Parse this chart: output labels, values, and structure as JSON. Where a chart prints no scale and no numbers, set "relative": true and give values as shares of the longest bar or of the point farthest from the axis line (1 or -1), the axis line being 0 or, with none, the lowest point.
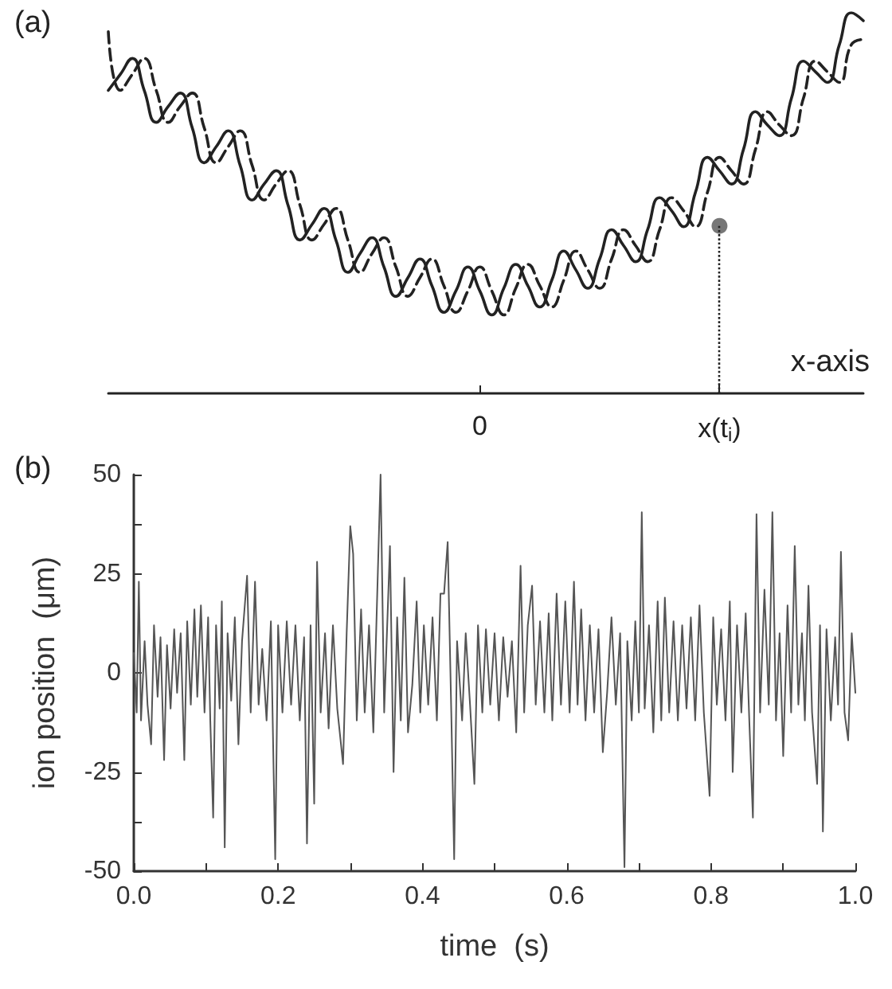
{
  "chart_data": [
    {
      "type": "line",
      "title": "(a)",
      "xlabel": "x-axis",
      "relative": true,
      "grid": false,
      "marker": "none",
      "categories": [
        null,
        null,
        null,
        null,
        null,
        null,
        null,
        null,
        null,
        null,
        null,
        null,
        null,
        null,
        null,
        null,
        null,
        null,
        null,
        null,
        null,
        null,
        null,
        null,
        null,
        null,
        null,
        null,
        null,
        null,
        null,
        "0",
        null,
        null,
        null,
        null,
        null,
        null,
        null,
        null,
        null,
        null,
        null,
        null,
        null,
        null,
        null,
        null,
        null,
        null,
        null,
        "x(t$_{i}$)",
        null,
        null,
        null,
        null,
        null,
        null,
        null,
        null,
        null,
        null,
        null,
        null
      ],
      "series": [
        {
          "color": "#222222",
          "line_style": "solid",
          "values": [
            0.796,
            0.838,
            0.88,
            0.796,
            0.712,
            0.754,
            0.789,
            0.698,
            0.606,
            0.648,
            0.69,
            0.599,
            0.508,
            0.55,
            0.585,
            0.494,
            0.403,
            0.444,
            0.486,
            0.402,
            0.318,
            0.367,
            0.409,
            0.332,
            0.255,
            0.304,
            0.353,
            0.283,
            0.213,
            0.269,
            0.332,
            0.269,
            0.206,
            0.276,
            0.339,
            0.283,
            0.227,
            0.297,
            0.374,
            0.325,
            0.276,
            0.353,
            0.43,
            0.388,
            0.346,
            0.43,
            0.514,
            0.48,
            0.438,
            0.529,
            0.62,
            0.585,
            0.55,
            0.641,
            0.74,
            0.705,
            0.677,
            0.775,
            0.873,
            0.845,
            0.817,
            0.916,
            1.0,
            0.979
          ]
        },
        {
          "color": "#222222",
          "line_style": "dashed",
          "values": [
            0.95,
            0.796,
            0.838,
            0.88,
            0.796,
            0.712,
            0.754,
            0.789,
            0.698,
            0.606,
            0.648,
            0.69,
            0.599,
            0.508,
            0.55,
            0.585,
            0.494,
            0.403,
            0.444,
            0.486,
            0.402,
            0.318,
            0.367,
            0.409,
            0.332,
            0.255,
            0.304,
            0.353,
            0.283,
            0.213,
            0.269,
            0.332,
            0.269,
            0.206,
            0.276,
            0.339,
            0.283,
            0.227,
            0.297,
            0.374,
            0.325,
            0.276,
            0.353,
            0.43,
            0.388,
            0.346,
            0.43,
            0.514,
            0.48,
            0.438,
            0.529,
            0.62,
            0.585,
            0.55,
            0.641,
            0.74,
            0.705,
            0.677,
            0.775,
            0.873,
            0.845,
            0.817,
            0.916,
            0.93
          ]
        },
        {
          "type": "scatter",
          "color": "#555555",
          "marker": "circle",
          "values": [
            null,
            null,
            null,
            null,
            null,
            null,
            null,
            null,
            null,
            null,
            null,
            null,
            null,
            null,
            null,
            null,
            null,
            null,
            null,
            null,
            null,
            null,
            null,
            null,
            null,
            null,
            null,
            null,
            null,
            null,
            null,
            null,
            null,
            null,
            null,
            null,
            null,
            null,
            null,
            null,
            null,
            null,
            null,
            null,
            null,
            null,
            null,
            null,
            null,
            null,
            null,
            0.44,
            null,
            null,
            null,
            null,
            null,
            null,
            null,
            null,
            null,
            null,
            null,
            null
          ]
        }
      ]
    },
    {
      "type": "line",
      "title": "(b)",
      "xlabel": "time  (s)",
      "ylabel": "ion position  (μm)",
      "grid": false,
      "marker": "none",
      "line_style": "solid",
      "color": "#555555",
      "xlim": [
        0,
        1
      ],
      "ylim": [
        -50,
        50
      ],
      "xticks": [
        {
          "value": 0,
          "label": "0.0"
        },
        {
          "value": 0.1,
          "label": null
        },
        {
          "value": 0.2,
          "label": "0.2"
        },
        {
          "value": 0.3,
          "label": null
        },
        {
          "value": 0.4,
          "label": "0.4"
        },
        {
          "value": 0.5,
          "label": null
        },
        {
          "value": 0.6,
          "label": "0.6"
        },
        {
          "value": 0.7,
          "label": null
        },
        {
          "value": 0.8,
          "label": "0.8"
        },
        {
          "value": 0.9,
          "label": null
        },
        {
          "value": 1,
          "label": "1.0"
        }
      ],
      "yticks": [
        -50,
        {
          "value": -37.5,
          "label": null
        },
        -25,
        0,
        25,
        {
          "value": 37.5,
          "label": null
        },
        50
      ],
      "x": [
        0.0,
        0.004,
        0.007,
        0.01,
        0.015,
        0.019,
        0.024,
        0.028,
        0.033,
        0.037,
        0.042,
        0.046,
        0.051,
        0.056,
        0.06,
        0.065,
        0.07,
        0.074,
        0.079,
        0.084,
        0.088,
        0.093,
        0.098,
        0.103,
        0.106,
        0.11,
        0.114,
        0.119,
        0.122,
        0.126,
        0.13,
        0.135,
        0.14,
        0.145,
        0.15,
        0.157,
        0.162,
        0.168,
        0.173,
        0.178,
        0.184,
        0.19,
        0.196,
        0.2,
        0.206,
        0.212,
        0.218,
        0.224,
        0.23,
        0.236,
        0.24,
        0.245,
        0.25,
        0.254,
        0.259,
        0.265,
        0.27,
        0.276,
        0.282,
        0.29,
        0.295,
        0.3,
        0.304,
        0.309,
        0.315,
        0.32,
        0.326,
        0.332,
        0.342,
        0.347,
        0.355,
        0.36,
        0.365,
        0.37,
        0.375,
        0.38,
        0.386,
        0.392,
        0.397,
        0.402,
        0.408,
        0.414,
        0.42,
        0.425,
        0.43,
        0.435,
        0.44,
        0.444,
        0.448,
        0.455,
        0.46,
        0.466,
        0.472,
        0.477,
        0.483,
        0.488,
        0.494,
        0.5,
        0.506,
        0.512,
        0.518,
        0.524,
        0.53,
        0.536,
        0.541,
        0.546,
        0.552,
        0.557,
        0.563,
        0.569,
        0.575,
        0.58,
        0.586,
        0.592,
        0.598,
        0.604,
        0.61,
        0.615,
        0.62,
        0.626,
        0.632,
        0.638,
        0.644,
        0.65,
        0.656,
        0.662,
        0.668,
        0.674,
        0.68,
        0.684,
        0.69,
        0.695,
        0.7,
        0.704,
        0.708,
        0.714,
        0.72,
        0.726,
        0.731,
        0.736,
        0.742,
        0.748,
        0.754,
        0.76,
        0.766,
        0.772,
        0.778,
        0.784,
        0.79,
        0.798,
        0.803,
        0.808,
        0.814,
        0.82,
        0.826,
        0.83,
        0.836,
        0.842,
        0.848,
        0.853,
        0.858,
        0.863,
        0.868,
        0.874,
        0.88,
        0.885,
        0.89,
        0.895,
        0.9,
        0.906,
        0.911,
        0.916,
        0.921,
        0.926,
        0.93,
        0.935,
        0.94,
        0.947,
        0.951,
        0.955,
        0.96,
        0.966,
        0.972,
        0.976,
        0.98,
        0.985,
        0.99,
        0.995,
        1.0
      ],
      "values": [
        5,
        -10,
        23,
        -12,
        8,
        -8,
        -18,
        12,
        -6,
        9,
        -22,
        7,
        -9,
        11,
        -5,
        10,
        -22,
        13,
        -8,
        16,
        -6,
        17,
        -10,
        14,
        -12,
        -36.5,
        12,
        -9,
        18,
        -44,
        10,
        -7,
        14,
        -18,
        8,
        24.5,
        -10,
        23,
        -8,
        6,
        -12,
        13,
        -47,
        12,
        -10,
        13,
        -8,
        12,
        -12,
        9,
        -43,
        12,
        -33,
        28,
        -10,
        10,
        -14,
        12,
        -9,
        -23,
        10,
        37,
        30,
        -12,
        16,
        -10,
        12,
        -15,
        50,
        -10,
        32,
        -25,
        14,
        -12,
        24,
        -15,
        -3,
        18,
        -10,
        12,
        -8,
        14,
        -12,
        20,
        20,
        33,
        -10,
        -47,
        8,
        -12,
        10,
        -8,
        -28,
        12,
        -10,
        11,
        -8,
        10,
        -12,
        9,
        -6,
        8,
        -15,
        27,
        -10,
        12,
        22,
        -8,
        13,
        -10,
        15,
        -12,
        20,
        -8,
        18,
        -10,
        23,
        -8,
        16,
        -12,
        12,
        -10,
        11,
        -20,
        -5,
        14,
        -8,
        10,
        -49,
        8,
        -12,
        13,
        -10,
        40.5,
        -9,
        12,
        -15,
        18,
        -12,
        19,
        -10,
        13,
        -12,
        12,
        -9,
        14,
        -12,
        17,
        -10,
        -31,
        14,
        -8,
        11,
        -12,
        18,
        -25,
        12,
        -10,
        15,
        -12,
        -36.5,
        40,
        -10,
        21,
        -8,
        40.5,
        -12,
        10,
        -21,
        17,
        -10,
        32,
        -8,
        10,
        -12,
        22,
        -10,
        -28,
        12,
        -40,
        11,
        -12,
        9,
        -8,
        30.5,
        -10,
        -17,
        10,
        -5
      ]
    }
  ]
}
